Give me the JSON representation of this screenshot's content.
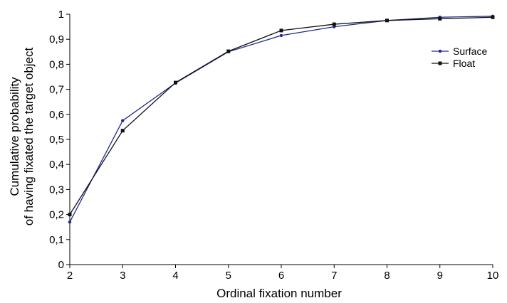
{
  "chart_data": {
    "type": "line",
    "title": "",
    "xlabel": "Ordinal fixation number",
    "ylabel_lines": [
      "Cumulative probability",
      "of having fixated the target object"
    ],
    "x": [
      2,
      3,
      4,
      5,
      6,
      7,
      8,
      9,
      10
    ],
    "xlim": [
      2,
      10
    ],
    "ylim": [
      0,
      1
    ],
    "x_ticks": [
      "2",
      "3",
      "4",
      "5",
      "6",
      "7",
      "8",
      "9",
      "10"
    ],
    "y_ticks": [
      "0",
      "0,1",
      "0,2",
      "0,3",
      "0,4",
      "0,5",
      "0,6",
      "0,7",
      "0,8",
      "0,9",
      "1"
    ],
    "grid": false,
    "legend_position": "top-right",
    "series": [
      {
        "name": "Surface",
        "color": "#1f2a8c",
        "marker": "circle",
        "values": [
          0.17,
          0.575,
          0.725,
          0.85,
          0.915,
          0.95,
          0.975,
          0.988,
          0.992
        ]
      },
      {
        "name": "Float",
        "color": "#111111",
        "marker": "square",
        "values": [
          0.2,
          0.535,
          0.727,
          0.852,
          0.935,
          0.96,
          0.975,
          0.982,
          0.988
        ]
      }
    ]
  }
}
